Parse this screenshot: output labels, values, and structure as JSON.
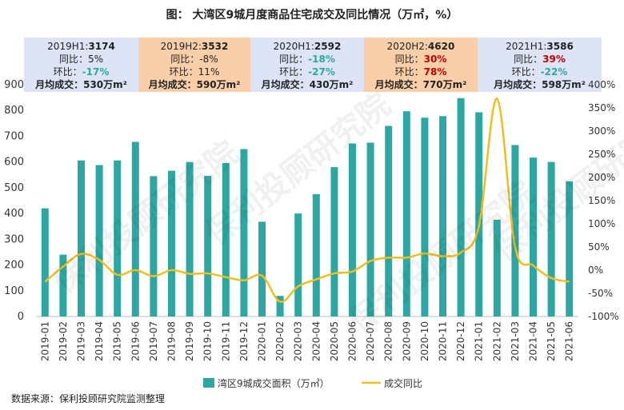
{
  "title": "图：  大湾区9城月度商品住宅成交及同比情况（万㎡，%）",
  "source": "数据来源：保利投顾研究院监测整理",
  "watermark": "保利投顾研究院",
  "colors": {
    "bar": "#2EA7A3",
    "line": "#F2BE1A",
    "blue_box": "#DCE4F5",
    "orange_box": "#F8CFA8",
    "red": "#C00000",
    "teal": "#2EA7A3"
  },
  "half_year_boxes": [
    {
      "period": "2019H1:",
      "total": "3174",
      "yoy_label": "同比：",
      "yoy": "5%",
      "yoy_color": "plain",
      "mom_label": "环比：",
      "mom": "-17%",
      "mom_color": "teal",
      "avg_label": "月均成交：",
      "avg": "530万m²",
      "bg": "blue"
    },
    {
      "period": "2019H2:",
      "total": "3532",
      "yoy_label": "同比：",
      "yoy": "-8%",
      "yoy_color": "plain",
      "mom_label": "环比：",
      "mom": "11%",
      "mom_color": "plain",
      "avg_label": "月均成交：",
      "avg": "590万m²",
      "bg": "orange"
    },
    {
      "period": "2020H1:",
      "total": "2592",
      "yoy_label": "同比：",
      "yoy": "-18%",
      "yoy_color": "teal",
      "mom_label": "环比：",
      "mom": "-27%",
      "mom_color": "teal",
      "avg_label": "月均成交：",
      "avg": "430万m²",
      "bg": "blue"
    },
    {
      "period": "2020H2:",
      "total": "4620",
      "yoy_label": "同比：",
      "yoy": "30%",
      "yoy_color": "red",
      "mom_label": "环比：",
      "mom": "78%",
      "mom_color": "red",
      "avg_label": "月均成交：",
      "avg": "770万m²",
      "bg": "orange"
    },
    {
      "period": "2021H1:",
      "total": "3586",
      "yoy_label": "同比：",
      "yoy": "39%",
      "yoy_color": "red",
      "mom_label": "环比：",
      "mom": "-22%",
      "mom_color": "teal",
      "avg_label": "月均成交：",
      "avg": "598万m²",
      "bg": "blue"
    }
  ],
  "chart_data": {
    "type": "bar",
    "categories": [
      "2019-01",
      "2019-02",
      "2019-03",
      "2019-04",
      "2019-05",
      "2019-06",
      "2019-07",
      "2019-08",
      "2019-09",
      "2019-10",
      "2019-11",
      "2019-12",
      "2020-01",
      "2020-02",
      "2020-03",
      "2020-04",
      "2020-05",
      "2020-06",
      "2020-07",
      "2020-08",
      "2020-09",
      "2020-10",
      "2020-11",
      "2020-12",
      "2021-01",
      "2021-02",
      "2021-03",
      "2021-04",
      "2021-05",
      "2021-06"
    ],
    "series": [
      {
        "name": "湾区9城成交面积（万㎡）",
        "type": "bar",
        "axis": "left",
        "values": [
          420,
          240,
          606,
          588,
          606,
          678,
          545,
          566,
          600,
          546,
          596,
          650,
          368,
          80,
          400,
          475,
          580,
          672,
          675,
          740,
          797,
          772,
          778,
          848,
          793,
          376,
          666,
          617,
          600,
          525
        ]
      },
      {
        "name": "成交同比",
        "type": "line",
        "axis": "right",
        "unit": "%",
        "values": [
          -25,
          8,
          35,
          22,
          -10,
          0,
          -13,
          0,
          -8,
          -7,
          -15,
          -22,
          -12,
          -68,
          -35,
          -20,
          -7,
          -3,
          20,
          27,
          27,
          36,
          30,
          38,
          95,
          370,
          50,
          10,
          -17,
          -25
        ]
      }
    ],
    "y_left": {
      "min": 0,
      "max": 900,
      "ticks": [
        0,
        100,
        200,
        300,
        400,
        500,
        600,
        700,
        800,
        900
      ]
    },
    "y_right": {
      "min": -100,
      "max": 400,
      "ticks": [
        "-100%",
        "-50%",
        "0%",
        "50%",
        "100%",
        "150%",
        "200%",
        "250%",
        "300%",
        "350%",
        "400%"
      ]
    },
    "legend_position": "bottom-center",
    "grid": false
  }
}
